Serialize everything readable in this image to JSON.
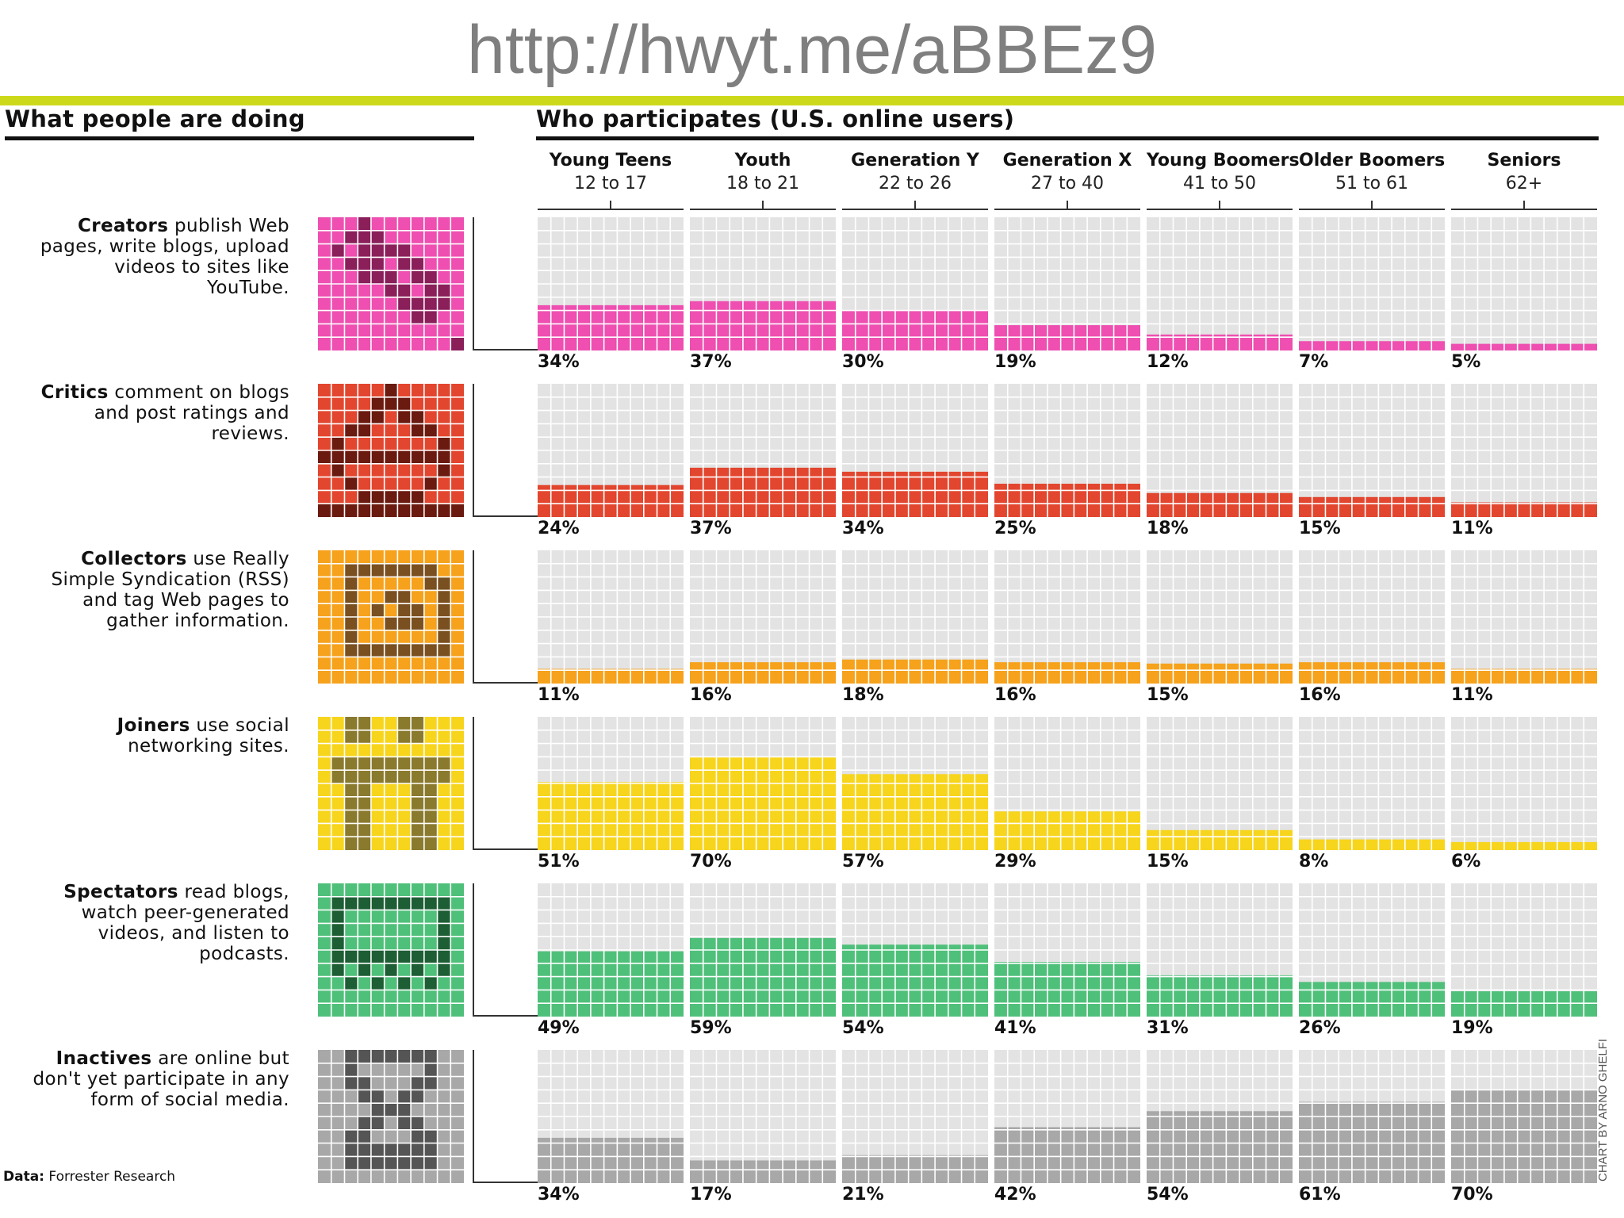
{
  "url": "http://hwyt.me/aBBEz9",
  "left_heading": "What people are doing",
  "right_heading": "Who participates (U.S. online users)",
  "footer": {
    "label": "Data:",
    "source": "Forrester Research"
  },
  "credit": "CHART BY ARNO GHELFI",
  "chart_data": {
    "type": "bar",
    "title": "Who participates (U.S. online users)",
    "categories": [
      "Young Teens",
      "Youth",
      "Generation Y",
      "Generation X",
      "Young Boomers",
      "Older Boomers",
      "Seniors"
    ],
    "category_ages": [
      "12 to 17",
      "18 to 21",
      "22 to 26",
      "27 to 40",
      "41 to 50",
      "51 to 61",
      "62+"
    ],
    "ylim": [
      0,
      100
    ],
    "series": [
      {
        "name": "Creators",
        "desc_bold": "Creators",
        "desc_rest": " publish Web pages, write blogs, upload videos to sites like YouTube.",
        "color": "#ee4fb0",
        "icon_dark": "#8a1f5a",
        "values": [
          34,
          37,
          30,
          19,
          12,
          7,
          5
        ],
        "labels": [
          "34%",
          "37%",
          "30%",
          "19%",
          "12%",
          "7%",
          "5%"
        ]
      },
      {
        "name": "Critics",
        "desc_bold": "Critics",
        "desc_rest": " comment on blogs and post ratings and reviews.",
        "color": "#e2462f",
        "icon_dark": "#6b1a10",
        "values": [
          24,
          37,
          34,
          25,
          18,
          15,
          11
        ],
        "labels": [
          "24%",
          "37%",
          "34%",
          "25%",
          "18%",
          "15%",
          "11%"
        ]
      },
      {
        "name": "Collectors",
        "desc_bold": "Collectors",
        "desc_rest": " use Really Simple Syndication (RSS) and tag Web pages to gather information.",
        "color": "#f6a21c",
        "icon_dark": "#7a5020",
        "values": [
          11,
          16,
          18,
          16,
          15,
          16,
          11
        ],
        "labels": [
          "11%",
          "16%",
          "18%",
          "16%",
          "15%",
          "16%",
          "11%"
        ]
      },
      {
        "name": "Joiners",
        "desc_bold": "Joiners",
        "desc_rest": " use social networking sites.",
        "color": "#f7d51d",
        "icon_dark": "#8a7a2e",
        "values": [
          51,
          70,
          57,
          29,
          15,
          8,
          6
        ],
        "labels": [
          "51%",
          "70%",
          "57%",
          "29%",
          "15%",
          "8%",
          "6%"
        ]
      },
      {
        "name": "Spectators",
        "desc_bold": "Spectators",
        "desc_rest": " read blogs, watch peer-generated videos, and listen to podcasts.",
        "color": "#4fc07a",
        "icon_dark": "#1d5e34",
        "values": [
          49,
          59,
          54,
          41,
          31,
          26,
          19
        ],
        "labels": [
          "49%",
          "59%",
          "54%",
          "41%",
          "31%",
          "26%",
          "19%"
        ]
      },
      {
        "name": "Inactives",
        "desc_bold": "Inactives",
        "desc_rest": " are online but don't yet participate in any form of social media.",
        "color": "#a8a8a8",
        "icon_dark": "#555555",
        "values": [
          34,
          17,
          21,
          42,
          54,
          61,
          70
        ],
        "labels": [
          "34%",
          "17%",
          "21%",
          "42%",
          "54%",
          "61%",
          "70%"
        ]
      }
    ]
  }
}
